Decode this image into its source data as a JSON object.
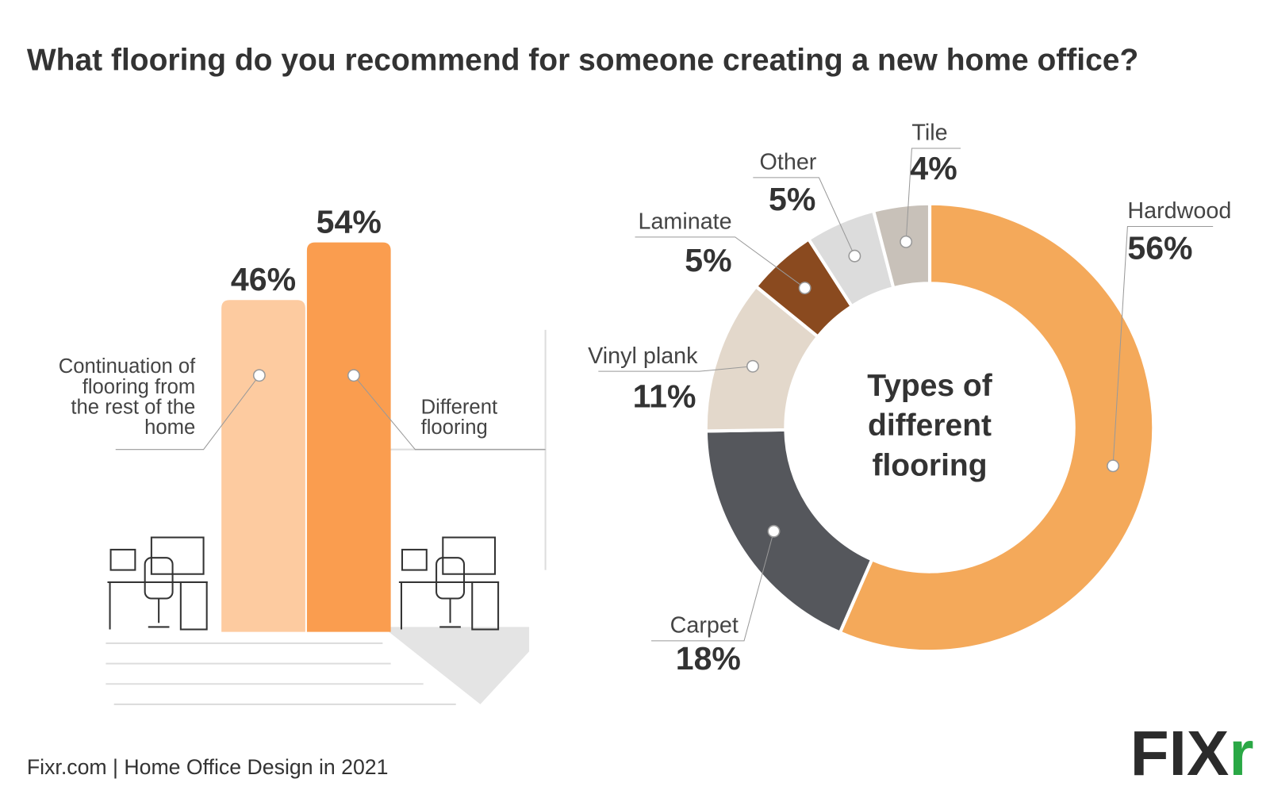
{
  "title": "What flooring do you recommend for someone creating a new home office?",
  "source": "Fixr.com | Home Office Design in 2021",
  "logo": {
    "text": "FIX",
    "accent": "r"
  },
  "chart_data": [
    {
      "type": "bar",
      "categories": [
        "Continuation of flooring from the rest of the home",
        "Different flooring"
      ],
      "values": [
        46,
        54
      ],
      "value_labels": [
        "46%",
        "54%"
      ],
      "colors": [
        "#fdcba0",
        "#fa9d4f"
      ]
    },
    {
      "type": "donut",
      "center_label": "Types of different flooring",
      "categories": [
        "Hardwood",
        "Carpet",
        "Vinyl plank",
        "Laminate",
        "Other",
        "Tile"
      ],
      "values": [
        56,
        18,
        11,
        5,
        5,
        4
      ],
      "value_labels": [
        "56%",
        "18%",
        "11%",
        "5%",
        "5%",
        "4%"
      ],
      "colors": [
        "#f4a95a",
        "#55575c",
        "#e3d8cb",
        "#8a4a1f",
        "#dcdcdc",
        "#c8c1b9"
      ]
    }
  ]
}
